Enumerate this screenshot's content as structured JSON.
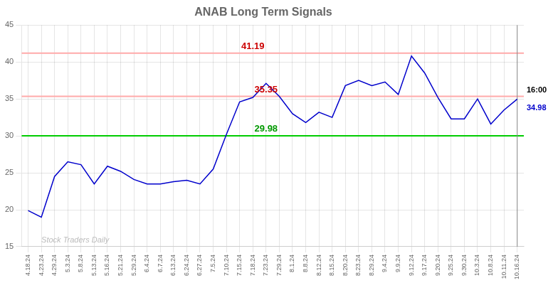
{
  "chart_data": {
    "type": "line",
    "title": "ANAB Long Term Signals",
    "categories": [
      "4.18.24",
      "4.23.24",
      "4.29.24",
      "5.3.24",
      "5.8.24",
      "5.13.24",
      "5.16.24",
      "5.21.24",
      "5.29.24",
      "6.4.24",
      "6.7.24",
      "6.13.24",
      "6.24.24",
      "6.27.24",
      "7.5.24",
      "7.10.24",
      "7.15.24",
      "7.18.24",
      "7.23.24",
      "7.29.24",
      "8.1.24",
      "8.8.24",
      "8.12.24",
      "8.15.24",
      "8.20.24",
      "8.23.24",
      "8.29.24",
      "9.4.24",
      "9.9.24",
      "9.12.24",
      "9.17.24",
      "9.20.24",
      "9.25.24",
      "9.30.24",
      "10.3.24",
      "10.8.24",
      "10.11.24",
      "10.16.24"
    ],
    "values": [
      19.9,
      19.0,
      24.5,
      26.5,
      26.1,
      23.5,
      25.9,
      25.2,
      24.1,
      23.5,
      23.5,
      23.8,
      24.0,
      23.5,
      25.5,
      30.2,
      34.6,
      35.2,
      37.1,
      35.35,
      33.0,
      31.8,
      33.2,
      32.5,
      36.8,
      37.5,
      36.8,
      37.3,
      35.6,
      40.8,
      38.5,
      35.2,
      32.3,
      32.3,
      35.0,
      31.6,
      33.5,
      34.98
    ],
    "color": "#0000cc",
    "ylim": [
      15,
      45
    ],
    "yticks": [
      15,
      20,
      25,
      30,
      35,
      40,
      45
    ],
    "grid": true,
    "hlines": [
      {
        "y": 41.19,
        "color": "#ffaaaa"
      },
      {
        "y": 35.35,
        "color": "#ffaaaa"
      },
      {
        "y": 30.0,
        "color": "#00cc00"
      }
    ],
    "vlines": [
      {
        "x": "10.16.24",
        "color": "#888888"
      }
    ],
    "annotations": [
      {
        "text": "41.19",
        "x": "7.18.24",
        "y": 41.19,
        "color": "#cc0000"
      },
      {
        "text": "35.35",
        "x": "7.23.24",
        "y": 35.35,
        "color": "#cc0000"
      },
      {
        "text": "29.98",
        "x": "7.23.24",
        "y": 30.0,
        "color": "#009900"
      }
    ],
    "watermark": {
      "text": "Stock Traders Daily",
      "x": "4.23.24",
      "y": 15.3,
      "color": "#bbbbbb"
    },
    "right_labels": [
      {
        "text": "16:00",
        "y": 34.98,
        "color": "#000000"
      },
      {
        "text": "34.98",
        "y": 34.98,
        "color": "#0000cc"
      }
    ]
  }
}
